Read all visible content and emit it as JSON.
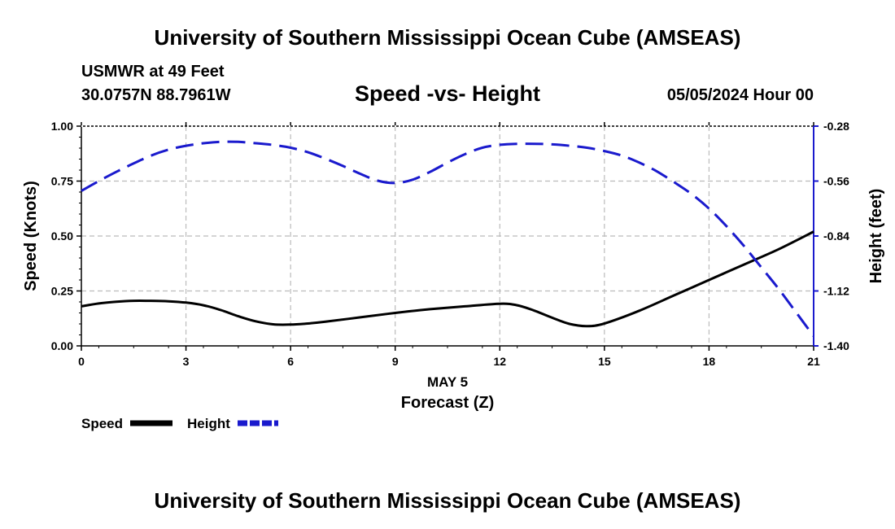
{
  "header": {
    "title": "University of Southern Mississippi Ocean Cube (AMSEAS)",
    "station": "USMWR at 49 Feet",
    "coordinates": "30.0757N  88.7961W",
    "subtitle": "Speed -vs- Height",
    "datetime": "05/05/2024 Hour 00"
  },
  "footer": {
    "title": "University of Southern Mississippi Ocean Cube (AMSEAS)"
  },
  "colors": {
    "speed": "#000000",
    "height": "#1a1acd",
    "grid": "#bbbbbb"
  },
  "chart_data": {
    "type": "line",
    "title": "Speed -vs- Height",
    "xlabel": "Forecast (Z)",
    "xlabel_date": "MAY 5",
    "ylabel": "Speed (Knots)",
    "ylabel_right": "Height (feet)",
    "xlim": [
      0,
      21
    ],
    "ylim": [
      0,
      1
    ],
    "ylim_right": [
      -1.4,
      -0.28
    ],
    "x_ticks": [
      0,
      3,
      6,
      9,
      12,
      15,
      18,
      21
    ],
    "x_tick_labels": [
      "0",
      "3",
      "6",
      "9",
      "12",
      "15",
      "18",
      "21"
    ],
    "y_ticks": [
      0,
      0.25,
      0.5,
      0.75,
      1.0
    ],
    "y_tick_labels": [
      "0.00",
      "0.25",
      "0.50",
      "0.75",
      "1.00"
    ],
    "y_ticks_right": [
      -1.4,
      -1.12,
      -0.84,
      -0.56,
      -0.28
    ],
    "y_tick_labels_right": [
      "-1.40",
      "-1.12",
      "-0.84",
      "-0.56",
      "-0.28"
    ],
    "grid": true,
    "legend_position": "bottom-left",
    "series": [
      {
        "name": "Speed",
        "axis": "left",
        "style": "solid",
        "x": [
          0,
          0.5,
          1,
          1.5,
          2,
          2.5,
          3,
          3.5,
          4,
          4.5,
          5,
          5.5,
          6,
          6.5,
          7,
          8,
          9,
          10,
          11,
          12,
          12.5,
          13,
          13.5,
          14,
          14.5,
          15,
          16,
          17,
          18,
          19,
          20,
          21
        ],
        "values": [
          0.18,
          0.193,
          0.201,
          0.205,
          0.205,
          0.203,
          0.197,
          0.185,
          0.163,
          0.135,
          0.112,
          0.098,
          0.097,
          0.102,
          0.11,
          0.13,
          0.15,
          0.167,
          0.18,
          0.192,
          0.185,
          0.16,
          0.128,
          0.1,
          0.09,
          0.102,
          0.16,
          0.23,
          0.3,
          0.37,
          0.44,
          0.52
        ]
      },
      {
        "name": "Height",
        "axis": "right",
        "style": "dashed",
        "x": [
          0,
          0.5,
          1,
          1.5,
          2,
          2.5,
          3,
          3.5,
          4,
          4.5,
          5,
          5.5,
          6,
          6.5,
          7,
          7.5,
          8,
          8.5,
          9,
          9.5,
          10,
          10.5,
          11,
          11.5,
          12,
          12.5,
          13,
          13.5,
          14,
          14.5,
          15,
          15.5,
          16,
          16.5,
          17,
          17.5,
          18,
          18.5,
          19,
          19.5,
          20,
          20.5,
          21
        ],
        "values": [
          -0.61,
          -0.56,
          -0.513,
          -0.47,
          -0.43,
          -0.4,
          -0.38,
          -0.367,
          -0.36,
          -0.36,
          -0.367,
          -0.376,
          -0.39,
          -0.413,
          -0.446,
          -0.483,
          -0.523,
          -0.558,
          -0.57,
          -0.553,
          -0.513,
          -0.466,
          -0.423,
          -0.39,
          -0.375,
          -0.37,
          -0.37,
          -0.373,
          -0.38,
          -0.39,
          -0.407,
          -0.43,
          -0.466,
          -0.51,
          -0.566,
          -0.626,
          -0.7,
          -0.79,
          -0.89,
          -1.0,
          -1.11,
          -1.23,
          -1.35
        ]
      }
    ]
  }
}
